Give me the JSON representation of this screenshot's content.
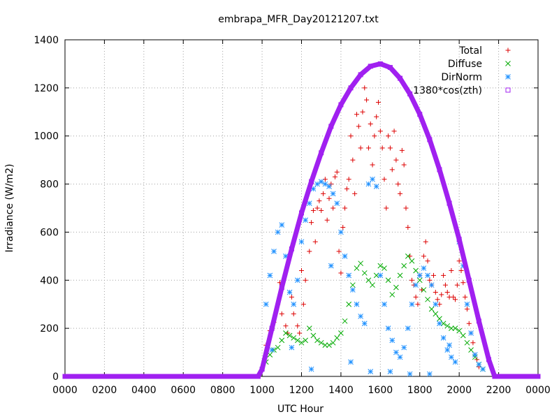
{
  "chart_data": {
    "type": "scatter",
    "title": "embrapa_MFR_Day20121207.txt",
    "xlabel": "UTC Hour",
    "ylabel": "Irradiance (W/m2)",
    "xlim": [
      0,
      24
    ],
    "ylim": [
      0,
      1400
    ],
    "x_ticks": [
      {
        "value": 0,
        "label": "0000"
      },
      {
        "value": 2,
        "label": "0200"
      },
      {
        "value": 4,
        "label": "0400"
      },
      {
        "value": 6,
        "label": "0600"
      },
      {
        "value": 8,
        "label": "0800"
      },
      {
        "value": 10,
        "label": "1000"
      },
      {
        "value": 12,
        "label": "1200"
      },
      {
        "value": 14,
        "label": "1400"
      },
      {
        "value": 16,
        "label": "1600"
      },
      {
        "value": 18,
        "label": "1800"
      },
      {
        "value": 20,
        "label": "2000"
      },
      {
        "value": 22,
        "label": "2200"
      },
      {
        "value": 24,
        "label": "0000"
      }
    ],
    "y_ticks": [
      0,
      200,
      400,
      600,
      800,
      1000,
      1200,
      1400
    ],
    "grid": true,
    "legend_position": "top-right",
    "series": [
      {
        "name": "Total",
        "color": "#dd0000",
        "marker": "plus",
        "points": [
          [
            10.2,
            130
          ],
          [
            10.4,
            190
          ],
          [
            10.6,
            225
          ],
          [
            10.8,
            300
          ],
          [
            10.9,
            390
          ],
          [
            11.0,
            260
          ],
          [
            11.2,
            210
          ],
          [
            11.3,
            180
          ],
          [
            11.5,
            330
          ],
          [
            11.6,
            260
          ],
          [
            11.8,
            210
          ],
          [
            11.9,
            180
          ],
          [
            12.0,
            440
          ],
          [
            12.1,
            300
          ],
          [
            12.2,
            400
          ],
          [
            12.4,
            520
          ],
          [
            12.5,
            640
          ],
          [
            12.6,
            690
          ],
          [
            12.7,
            560
          ],
          [
            12.8,
            700
          ],
          [
            12.9,
            730
          ],
          [
            13.0,
            690
          ],
          [
            13.1,
            760
          ],
          [
            13.2,
            820
          ],
          [
            13.3,
            650
          ],
          [
            13.4,
            740
          ],
          [
            13.5,
            800
          ],
          [
            13.6,
            700
          ],
          [
            13.7,
            830
          ],
          [
            13.8,
            850
          ],
          [
            13.9,
            520
          ],
          [
            14.0,
            430
          ],
          [
            14.1,
            620
          ],
          [
            14.2,
            700
          ],
          [
            14.3,
            780
          ],
          [
            14.4,
            820
          ],
          [
            14.5,
            1000
          ],
          [
            14.6,
            900
          ],
          [
            14.7,
            760
          ],
          [
            14.8,
            1090
          ],
          [
            14.9,
            1040
          ],
          [
            15.0,
            950
          ],
          [
            15.1,
            1100
          ],
          [
            15.2,
            1200
          ],
          [
            15.3,
            1150
          ],
          [
            15.4,
            950
          ],
          [
            15.5,
            1050
          ],
          [
            15.6,
            880
          ],
          [
            15.7,
            1000
          ],
          [
            15.8,
            1080
          ],
          [
            15.9,
            1140
          ],
          [
            16.0,
            1020
          ],
          [
            16.1,
            950
          ],
          [
            16.2,
            820
          ],
          [
            16.3,
            700
          ],
          [
            16.4,
            1000
          ],
          [
            16.5,
            950
          ],
          [
            16.6,
            860
          ],
          [
            16.7,
            1020
          ],
          [
            16.8,
            900
          ],
          [
            16.9,
            800
          ],
          [
            17.0,
            760
          ],
          [
            17.1,
            940
          ],
          [
            17.2,
            880
          ],
          [
            17.3,
            700
          ],
          [
            17.4,
            620
          ],
          [
            17.5,
            500
          ],
          [
            17.6,
            400
          ],
          [
            17.7,
            380
          ],
          [
            17.8,
            330
          ],
          [
            17.9,
            300
          ],
          [
            18.0,
            420
          ],
          [
            18.1,
            360
          ],
          [
            18.2,
            500
          ],
          [
            18.3,
            560
          ],
          [
            18.4,
            480
          ],
          [
            18.5,
            400
          ],
          [
            18.6,
            380
          ],
          [
            18.7,
            420
          ],
          [
            18.8,
            350
          ],
          [
            18.9,
            320
          ],
          [
            19.0,
            300
          ],
          [
            19.1,
            340
          ],
          [
            19.2,
            420
          ],
          [
            19.3,
            380
          ],
          [
            19.4,
            350
          ],
          [
            19.5,
            330
          ],
          [
            19.6,
            440
          ],
          [
            19.7,
            330
          ],
          [
            19.8,
            320
          ],
          [
            19.9,
            380
          ],
          [
            20.0,
            480
          ],
          [
            20.1,
            440
          ],
          [
            20.2,
            390
          ],
          [
            20.3,
            330
          ],
          [
            20.4,
            280
          ],
          [
            20.5,
            220
          ],
          [
            20.6,
            180
          ],
          [
            20.7,
            140
          ],
          [
            20.8,
            90
          ],
          [
            20.9,
            70
          ],
          [
            21.0,
            40
          ]
        ]
      },
      {
        "name": "Diffuse",
        "color": "#00aa00",
        "marker": "cross",
        "points": [
          [
            10.2,
            60
          ],
          [
            10.4,
            90
          ],
          [
            10.6,
            110
          ],
          [
            10.8,
            120
          ],
          [
            11.0,
            150
          ],
          [
            11.2,
            180
          ],
          [
            11.4,
            170
          ],
          [
            11.6,
            160
          ],
          [
            11.8,
            150
          ],
          [
            12.0,
            140
          ],
          [
            12.2,
            150
          ],
          [
            12.4,
            200
          ],
          [
            12.6,
            170
          ],
          [
            12.8,
            150
          ],
          [
            13.0,
            140
          ],
          [
            13.2,
            130
          ],
          [
            13.4,
            130
          ],
          [
            13.6,
            140
          ],
          [
            13.8,
            160
          ],
          [
            14.0,
            180
          ],
          [
            14.2,
            230
          ],
          [
            14.4,
            300
          ],
          [
            14.6,
            380
          ],
          [
            14.8,
            450
          ],
          [
            15.0,
            470
          ],
          [
            15.2,
            430
          ],
          [
            15.4,
            400
          ],
          [
            15.6,
            380
          ],
          [
            15.8,
            420
          ],
          [
            16.0,
            460
          ],
          [
            16.2,
            450
          ],
          [
            16.4,
            400
          ],
          [
            16.6,
            340
          ],
          [
            16.8,
            370
          ],
          [
            17.0,
            420
          ],
          [
            17.2,
            460
          ],
          [
            17.4,
            500
          ],
          [
            17.6,
            480
          ],
          [
            17.8,
            440
          ],
          [
            18.0,
            400
          ],
          [
            18.2,
            360
          ],
          [
            18.4,
            320
          ],
          [
            18.6,
            280
          ],
          [
            18.8,
            260
          ],
          [
            19.0,
            240
          ],
          [
            19.2,
            220
          ],
          [
            19.4,
            210
          ],
          [
            19.6,
            200
          ],
          [
            19.8,
            200
          ],
          [
            20.0,
            190
          ],
          [
            20.2,
            170
          ],
          [
            20.4,
            140
          ],
          [
            20.6,
            110
          ],
          [
            20.8,
            80
          ],
          [
            21.0,
            50
          ],
          [
            21.2,
            30
          ]
        ]
      },
      {
        "name": "DirNorm",
        "color": "#1e90ff",
        "marker": "star",
        "points": [
          [
            10.2,
            300
          ],
          [
            10.4,
            420
          ],
          [
            10.6,
            520
          ],
          [
            10.8,
            600
          ],
          [
            11.0,
            630
          ],
          [
            11.2,
            500
          ],
          [
            11.4,
            350
          ],
          [
            11.6,
            300
          ],
          [
            11.8,
            400
          ],
          [
            12.0,
            560
          ],
          [
            12.2,
            650
          ],
          [
            12.4,
            720
          ],
          [
            12.6,
            780
          ],
          [
            12.8,
            800
          ],
          [
            13.0,
            810
          ],
          [
            13.2,
            800
          ],
          [
            13.4,
            790
          ],
          [
            13.6,
            760
          ],
          [
            13.8,
            720
          ],
          [
            14.0,
            600
          ],
          [
            14.2,
            500
          ],
          [
            14.4,
            420
          ],
          [
            14.6,
            360
          ],
          [
            14.8,
            300
          ],
          [
            15.0,
            250
          ],
          [
            15.2,
            220
          ],
          [
            15.4,
            800
          ],
          [
            15.6,
            820
          ],
          [
            15.8,
            790
          ],
          [
            16.0,
            420
          ],
          [
            16.2,
            300
          ],
          [
            16.4,
            200
          ],
          [
            16.6,
            150
          ],
          [
            16.8,
            100
          ],
          [
            17.0,
            80
          ],
          [
            17.2,
            120
          ],
          [
            17.4,
            200
          ],
          [
            17.6,
            300
          ],
          [
            17.8,
            380
          ],
          [
            18.0,
            420
          ],
          [
            18.2,
            450
          ],
          [
            18.4,
            420
          ],
          [
            18.6,
            380
          ],
          [
            18.8,
            300
          ],
          [
            19.0,
            220
          ],
          [
            19.2,
            160
          ],
          [
            19.4,
            110
          ],
          [
            19.6,
            80
          ],
          [
            19.8,
            60
          ],
          [
            20.0,
            560
          ],
          [
            20.2,
            460
          ],
          [
            20.4,
            300
          ],
          [
            20.6,
            180
          ],
          [
            20.8,
            90
          ],
          [
            21.0,
            50
          ],
          [
            21.2,
            30
          ],
          [
            10.5,
            110
          ],
          [
            11.5,
            120
          ],
          [
            12.5,
            30
          ],
          [
            13.5,
            460
          ],
          [
            14.5,
            60
          ],
          [
            15.5,
            20
          ],
          [
            16.5,
            20
          ],
          [
            17.5,
            10
          ],
          [
            18.5,
            10
          ],
          [
            19.5,
            130
          ]
        ]
      },
      {
        "name": "1380*cos(zth)",
        "color": "#a020f0",
        "marker": "square",
        "points": [
          [
            0,
            0
          ],
          [
            1,
            0
          ],
          [
            2,
            0
          ],
          [
            3,
            0
          ],
          [
            4,
            0
          ],
          [
            5,
            0
          ],
          [
            6,
            0
          ],
          [
            7,
            0
          ],
          [
            8,
            0
          ],
          [
            9,
            0
          ],
          [
            9.8,
            0
          ],
          [
            10.0,
            30
          ],
          [
            10.5,
            200
          ],
          [
            11.0,
            370
          ],
          [
            11.5,
            530
          ],
          [
            12.0,
            680
          ],
          [
            12.5,
            810
          ],
          [
            13.0,
            930
          ],
          [
            13.5,
            1040
          ],
          [
            14.0,
            1130
          ],
          [
            14.5,
            1200
          ],
          [
            15.0,
            1255
          ],
          [
            15.5,
            1290
          ],
          [
            16.0,
            1300
          ],
          [
            16.5,
            1285
          ],
          [
            17.0,
            1240
          ],
          [
            17.5,
            1175
          ],
          [
            18.0,
            1090
          ],
          [
            18.5,
            985
          ],
          [
            19.0,
            860
          ],
          [
            19.5,
            720
          ],
          [
            20.0,
            570
          ],
          [
            20.5,
            400
          ],
          [
            21.0,
            230
          ],
          [
            21.5,
            70
          ],
          [
            21.8,
            0
          ],
          [
            22,
            0
          ],
          [
            23,
            0
          ],
          [
            24,
            0
          ]
        ]
      }
    ]
  }
}
